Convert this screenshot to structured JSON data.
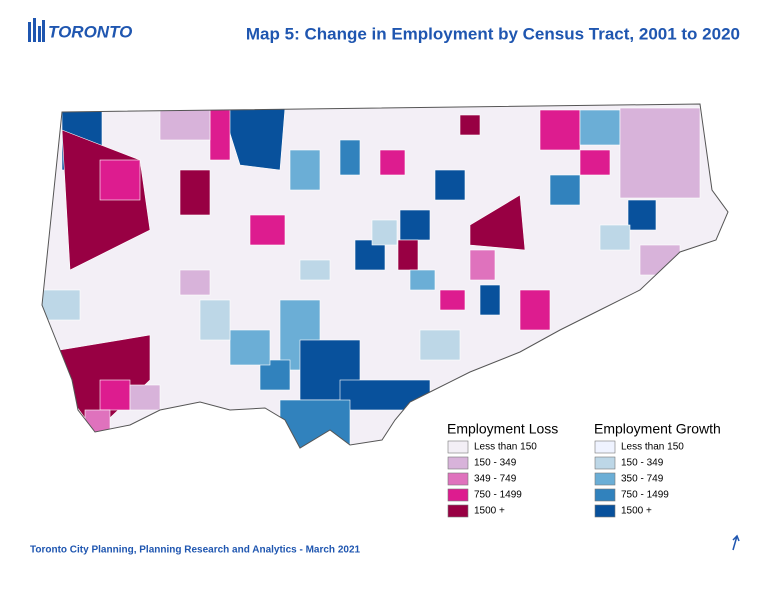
{
  "logo": {
    "text": "TORONTO"
  },
  "title": "Map 5: Change in Employment by Census Tract, 2001 to 2020",
  "legend": [
    {
      "title": "Employment Loss",
      "items": [
        {
          "label": "Less than 150",
          "color": "#f3eff6"
        },
        {
          "label": "150 - 349",
          "color": "#d8b3da"
        },
        {
          "label": "349 - 749",
          "color": "#df72bd"
        },
        {
          "label": "750 - 1499",
          "color": "#dd1c8f"
        },
        {
          "label": "1500 +",
          "color": "#980043"
        }
      ]
    },
    {
      "title": "Employment Growth",
      "items": [
        {
          "label": "Less than 150",
          "color": "#eff3ff"
        },
        {
          "label": "150 - 349",
          "color": "#bdd7e7"
        },
        {
          "label": "350 - 749",
          "color": "#6baed6"
        },
        {
          "label": "750 - 1499",
          "color": "#3182bd"
        },
        {
          "label": "1500 +",
          "color": "#08519c"
        }
      ]
    }
  ],
  "footer": "Toronto City Planning, Planning Research and Analytics - March 2021"
}
